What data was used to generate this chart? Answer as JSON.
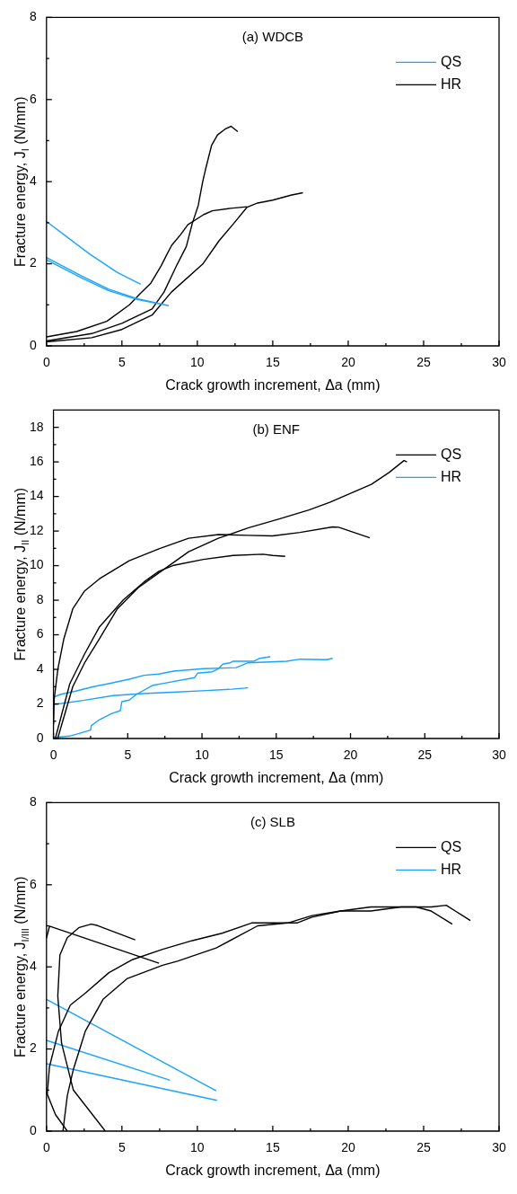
{
  "chart_data": [
    {
      "type": "line",
      "title": "(a) WDCB",
      "xlabel": "Crack growth increment, Δa (mm)",
      "ylabel": "Fracture energy, J$_{I}$ (N/mm)",
      "xlim": [
        0,
        30
      ],
      "ylim": [
        0,
        8
      ],
      "xticks": [
        0,
        {
          "value": 2.5,
          "label": null
        },
        5,
        {
          "value": 7.5,
          "label": null
        },
        10,
        {
          "value": 12.5,
          "label": null
        },
        15,
        {
          "value": 17.5,
          "label": null
        },
        20,
        {
          "value": 22.5,
          "label": null
        },
        25,
        {
          "value": 27.5,
          "label": null
        },
        30
      ],
      "yticks": [
        0,
        {
          "value": 1,
          "label": null
        },
        2,
        {
          "value": 3,
          "label": null
        },
        4,
        {
          "value": 5,
          "label": null
        },
        6,
        {
          "value": 7,
          "label": null
        },
        8
      ],
      "legend": "top right",
      "series": [
        {
          "name": "QS",
          "color": "#1aa3ff",
          "x": [
            0,
            2.85,
            4.68,
            6.24
          ],
          "values": [
            3.03,
            2.24,
            1.79,
            1.5
          ]
        },
        {
          "color": "#1aa3ff",
          "x": [
            0,
            2.35,
            4.13,
            6,
            8.1
          ],
          "values": [
            2.15,
            1.7,
            1.38,
            1.15,
            0.98
          ]
        },
        {
          "color": "#1aa3ff",
          "x": [
            0,
            2.3,
            4.1,
            6,
            7.4
          ],
          "values": [
            2.1,
            1.66,
            1.35,
            1.13,
            1.03
          ]
        },
        {
          "name": "HR",
          "color": "#000000",
          "x": [
            0,
            3,
            5,
            7,
            7.79,
            8.67,
            9.27,
            9.67,
            10.06,
            10.35,
            10.55,
            10.95,
            11.34,
            11.84,
            12.23,
            12.68
          ],
          "values": [
            0.12,
            0.3,
            0.55,
            0.9,
            1.31,
            1.99,
            2.42,
            2.99,
            3.42,
            3.99,
            4.31,
            4.89,
            5.14,
            5.28,
            5.35,
            5.22
          ]
        },
        {
          "color": "#000000",
          "x": [
            0,
            2,
            4,
            5.5,
            6.2,
            6.9,
            7.6,
            8.0,
            8.3,
            8.87,
            9.37,
            10.43,
            11.0,
            12.2,
            13.3
          ],
          "values": [
            0.22,
            0.35,
            0.6,
            1.0,
            1.27,
            1.52,
            1.95,
            2.24,
            2.45,
            2.7,
            2.95,
            3.2,
            3.29,
            3.35,
            3.39
          ]
        },
        {
          "color": "#000000",
          "x": [
            0,
            3,
            5,
            7,
            8.28,
            10.35,
            11.44,
            12.43,
            13.3,
            14.0,
            15.0,
            16.2,
            17.0
          ],
          "values": [
            0.1,
            0.2,
            0.4,
            0.75,
            1.31,
            1.99,
            2.56,
            2.99,
            3.38,
            3.48,
            3.55,
            3.67,
            3.73
          ]
        }
      ]
    },
    {
      "type": "line",
      "title": "(b) ENF",
      "xlabel": "Crack growth increment, Δa (mm)",
      "ylabel": "Fracture energy, J$_{II}$ (N/mm)",
      "xlim": [
        0,
        30
      ],
      "ylim": [
        0,
        19
      ],
      "xticks": [
        0,
        {
          "value": 2.5,
          "label": null
        },
        5,
        {
          "value": 7.5,
          "label": null
        },
        10,
        {
          "value": 12.5,
          "label": null
        },
        15,
        {
          "value": 17.5,
          "label": null
        },
        20,
        {
          "value": 22.5,
          "label": null
        },
        25,
        {
          "value": 27.5,
          "label": null
        },
        30
      ],
      "yticks": [
        0,
        {
          "value": 1,
          "label": null
        },
        2,
        {
          "value": 3,
          "label": null
        },
        4,
        {
          "value": 5,
          "label": null
        },
        6,
        {
          "value": 7,
          "label": null
        },
        8,
        {
          "value": 9,
          "label": null
        },
        10,
        {
          "value": 11,
          "label": null
        },
        12,
        {
          "value": 13,
          "label": null
        },
        14,
        {
          "value": 15,
          "label": null
        },
        16,
        {
          "value": 17,
          "label": null
        },
        18
      ],
      "legend": "top right",
      "series": [
        {
          "name": "QS",
          "color": "#000000",
          "x": [
            0,
            0.05,
            0.3,
            0.7,
            1.3,
            2.1,
            3.1,
            5.1,
            7.1,
            9.1,
            11.1,
            13.1,
            14.75,
            16.6,
            18.8,
            19.2,
            21.3
          ],
          "values": [
            0.8,
            2.3,
            4.04,
            5.77,
            7.5,
            8.54,
            9.24,
            10.28,
            10.97,
            11.58,
            11.8,
            11.75,
            11.72,
            11.92,
            12.24,
            12.22,
            11.61
          ]
        },
        {
          "color": "#000000",
          "x": [
            0.14,
            1.1,
            2.1,
            3.1,
            4.7,
            6.1,
            7.1,
            8.1,
            10.1,
            12.1,
            14.1,
            14.75,
            15.6
          ],
          "values": [
            0.05,
            3.17,
            4.9,
            6.46,
            8.02,
            9.06,
            9.67,
            10.02,
            10.36,
            10.59,
            10.66,
            10.59,
            10.54
          ]
        },
        {
          "color": "#000000",
          "x": [
            0.3,
            1.3,
            2.1,
            3.1,
            4.3,
            5.7,
            7.1,
            9.1,
            11.1,
            13.1,
            15.2,
            17.2,
            18.6,
            20.0,
            21.4,
            22.6,
            23.6,
            23.8
          ],
          "values": [
            0.05,
            3.0,
            4.38,
            5.77,
            7.5,
            8.72,
            9.58,
            10.8,
            11.58,
            12.18,
            12.7,
            13.22,
            13.66,
            14.18,
            14.7,
            15.39,
            16.08,
            16.0
          ]
        },
        {
          "name": "HR",
          "color": "#1aa3ff",
          "x": [
            0,
            0.5,
            1.5,
            2.7,
            3.7,
            5.1,
            6.1,
            7.1,
            8.1,
            10.1,
            12.3,
            13.1,
            15.7,
            16.6,
            18.4,
            18.8
          ],
          "values": [
            2.39,
            2.56,
            2.74,
            3.0,
            3.17,
            3.43,
            3.66,
            3.73,
            3.9,
            4.04,
            4.1,
            4.38,
            4.47,
            4.59,
            4.56,
            4.64
          ]
        },
        {
          "color": "#1aa3ff",
          "x": [
            0,
            2,
            4,
            6,
            8,
            10,
            12,
            13.1
          ],
          "values": [
            1.96,
            2.2,
            2.48,
            2.6,
            2.68,
            2.76,
            2.85,
            2.93
          ]
        },
        {
          "color": "#1aa3ff",
          "x": [
            0,
            1.1,
            2.5,
            2.55,
            3.1,
            3.9,
            4.5,
            4.6,
            5.1,
            5.6,
            6.7,
            7.5,
            9.5,
            9.7,
            10.7,
            11.1,
            11.4,
            11.9,
            12.1,
            13.5,
            13.9,
            14.6
          ],
          "values": [
            0.05,
            0.14,
            0.49,
            0.75,
            1.09,
            1.44,
            1.61,
            2.13,
            2.22,
            2.56,
            3.08,
            3.2,
            3.52,
            3.78,
            3.86,
            4.04,
            4.3,
            4.38,
            4.47,
            4.47,
            4.64,
            4.73
          ]
        }
      ]
    },
    {
      "type": "line",
      "title": "(c) SLB",
      "xlabel": "Crack growth increment, Δa (mm)",
      "ylabel": "Fracture energy, J$_{I/III}$ (N/mm)",
      "xlim": [
        0,
        30
      ],
      "ylim": [
        0,
        8
      ],
      "xticks": [
        0,
        {
          "value": 2.5,
          "label": null
        },
        5,
        {
          "value": 7.5,
          "label": null
        },
        10,
        {
          "value": 12.5,
          "label": null
        },
        15,
        {
          "value": 17.5,
          "label": null
        },
        20,
        {
          "value": 22.5,
          "label": null
        },
        25,
        {
          "value": 27.5,
          "label": null
        },
        30
      ],
      "yticks": [
        0,
        {
          "value": 1,
          "label": null
        },
        2,
        {
          "value": 3,
          "label": null
        },
        4,
        {
          "value": 5,
          "label": null
        },
        6,
        {
          "value": 7,
          "label": null
        },
        8
      ],
      "legend": "top right",
      "series": [
        {
          "name": "QS",
          "color": "#000000",
          "x": [
            0,
            0.2,
            7.46
          ],
          "values": [
            4.7,
            4.99,
            4.09
          ]
        },
        {
          "color": "#000000",
          "x": [
            3.9,
            1.78,
            1.0,
            0.75,
            0.89,
            1.38,
            2.17,
            2.96,
            3.36,
            5.88
          ],
          "values": [
            0,
            1.0,
            2.14,
            3.29,
            4.29,
            4.71,
            4.96,
            5.04,
            5.01,
            4.66
          ]
        },
        {
          "color": "#000000",
          "x": [
            1.09,
            1.38,
            1.78,
            2.57,
            3.75,
            5.33,
            7.7,
            8.68,
            11.25,
            14.0,
            16.0,
            17.6,
            19.5,
            21.5,
            23.5,
            24.5,
            25.5,
            26.9
          ],
          "values": [
            0,
            0.86,
            1.5,
            2.43,
            3.21,
            3.71,
            4.04,
            4.14,
            4.46,
            5.0,
            5.07,
            5.25,
            5.36,
            5.36,
            5.46,
            5.46,
            5.36,
            5.04
          ]
        },
        {
          "color": "#000000",
          "x": [
            1.38,
            0.6,
            0.05,
            0.2,
            0.79,
            1.58,
            2.57,
            4.14,
            5.72,
            7.7,
            9.67,
            11.64,
            13.6,
            14.8,
            16.6,
            17.6,
            19.5,
            21.5,
            23.5,
            25.5,
            26.5,
            28.1
          ],
          "values": [
            0,
            0.4,
            0.9,
            1.57,
            2.43,
            3.07,
            3.36,
            3.86,
            4.18,
            4.43,
            4.64,
            4.82,
            5.07,
            5.07,
            5.07,
            5.21,
            5.36,
            5.46,
            5.46,
            5.46,
            5.5,
            5.13
          ]
        },
        {
          "name": "HR",
          "color": "#1aa3ff",
          "x": [
            0,
            11.25
          ],
          "values": [
            3.21,
            0.98
          ]
        },
        {
          "color": "#1aa3ff",
          "x": [
            0,
            8.19
          ],
          "values": [
            2.21,
            1.24
          ]
        },
        {
          "color": "#1aa3ff",
          "x": [
            0,
            11.3
          ],
          "values": [
            1.64,
            0.75
          ]
        }
      ]
    }
  ]
}
